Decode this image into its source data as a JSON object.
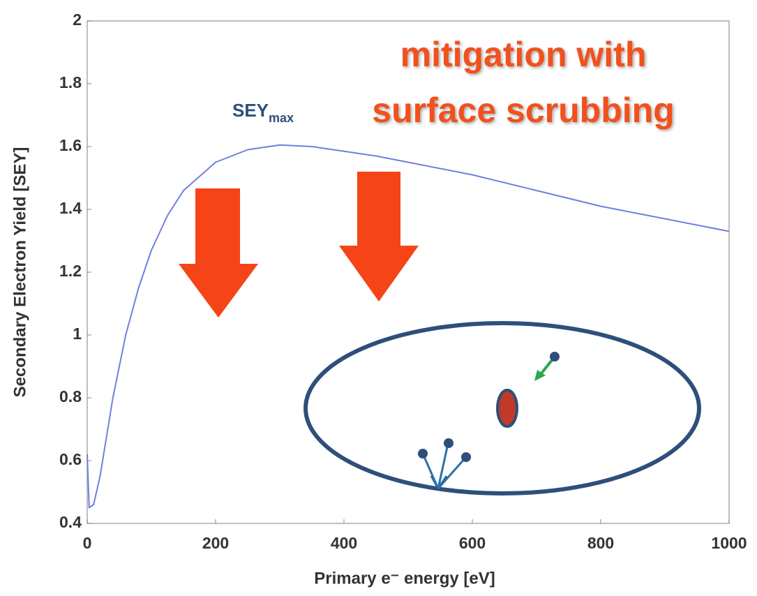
{
  "chart_data": {
    "type": "line",
    "x_label": "Primary e⁻ energy [eV]",
    "y_label": "Secondary Electron Yield [SEY]",
    "sey_label": "SEY",
    "sey_sub": "max",
    "annotation_lines": [
      "mitigation with",
      "surface scrubbing"
    ],
    "x": [
      0,
      3,
      10,
      20,
      40,
      60,
      80,
      100,
      125,
      150,
      200,
      250,
      300,
      350,
      400,
      450,
      500,
      600,
      700,
      800,
      900,
      1000
    ],
    "series": [
      {
        "color": "#6f7fe0",
        "values": [
          0.62,
          0.45,
          0.46,
          0.55,
          0.8,
          1.0,
          1.15,
          1.27,
          1.38,
          1.46,
          1.55,
          1.59,
          1.605,
          1.6,
          1.585,
          1.57,
          1.55,
          1.51,
          1.46,
          1.41,
          1.37,
          1.33
        ]
      }
    ],
    "xlim": [
      0,
      1000
    ],
    "xticks": [
      0,
      200,
      400,
      600,
      800,
      1000
    ],
    "ylim": [
      0.4,
      2
    ],
    "yticks": [
      0.4,
      0.6,
      0.8,
      1,
      1.2,
      1.4,
      1.6,
      1.8,
      2
    ],
    "grid": false
  }
}
